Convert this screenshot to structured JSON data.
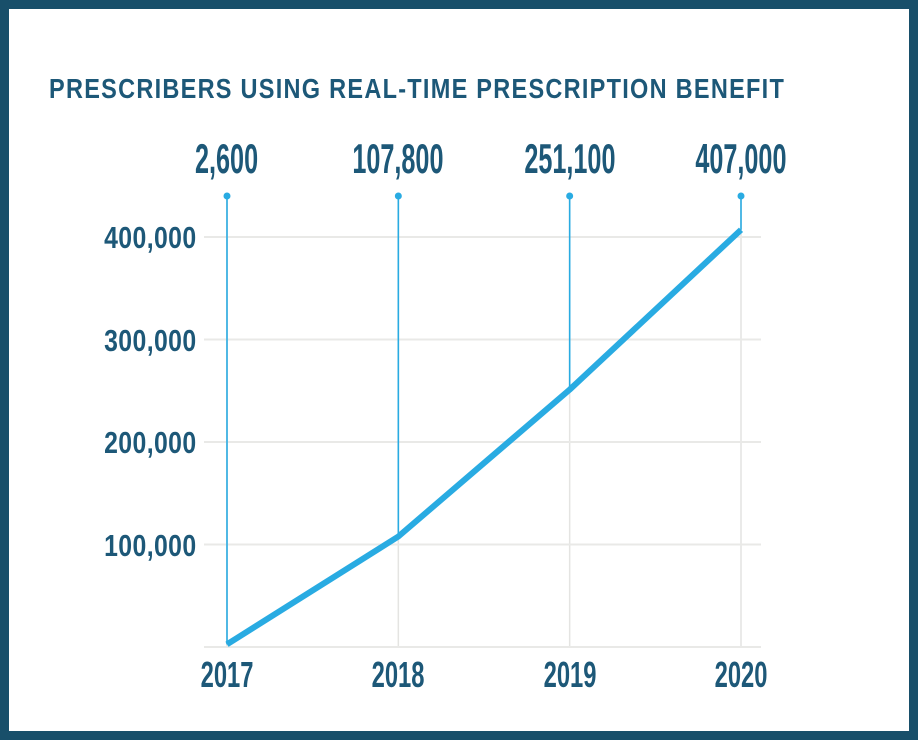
{
  "frame": {
    "border_color": "#184f6a",
    "background_color": "#ffffff"
  },
  "chart_data": {
    "type": "line",
    "title": "PRESCRIBERS USING REAL-TIME PRESCRIPTION BENEFIT",
    "categories": [
      "2017",
      "2018",
      "2019",
      "2020"
    ],
    "values": [
      2600,
      107800,
      251100,
      407000
    ],
    "point_labels": [
      "2,600",
      "107,800",
      "251,100",
      "407,000"
    ],
    "yticks": [
      {
        "value": 100000,
        "label": "100,000"
      },
      {
        "value": 200000,
        "label": "200,000"
      },
      {
        "value": 300000,
        "label": "300,000"
      },
      {
        "value": 400000,
        "label": "400,000"
      }
    ],
    "ylim": [
      0,
      440000
    ],
    "grid": true,
    "legend": "none",
    "xlabel": "",
    "ylabel": "",
    "colors": {
      "line": "#29abe2",
      "marker_line": "#29abe2",
      "dot": "#29abe2",
      "text": "#1d5878",
      "gridline": "#e9e9e7",
      "vertical_gridline": "#e4e4e2"
    }
  }
}
